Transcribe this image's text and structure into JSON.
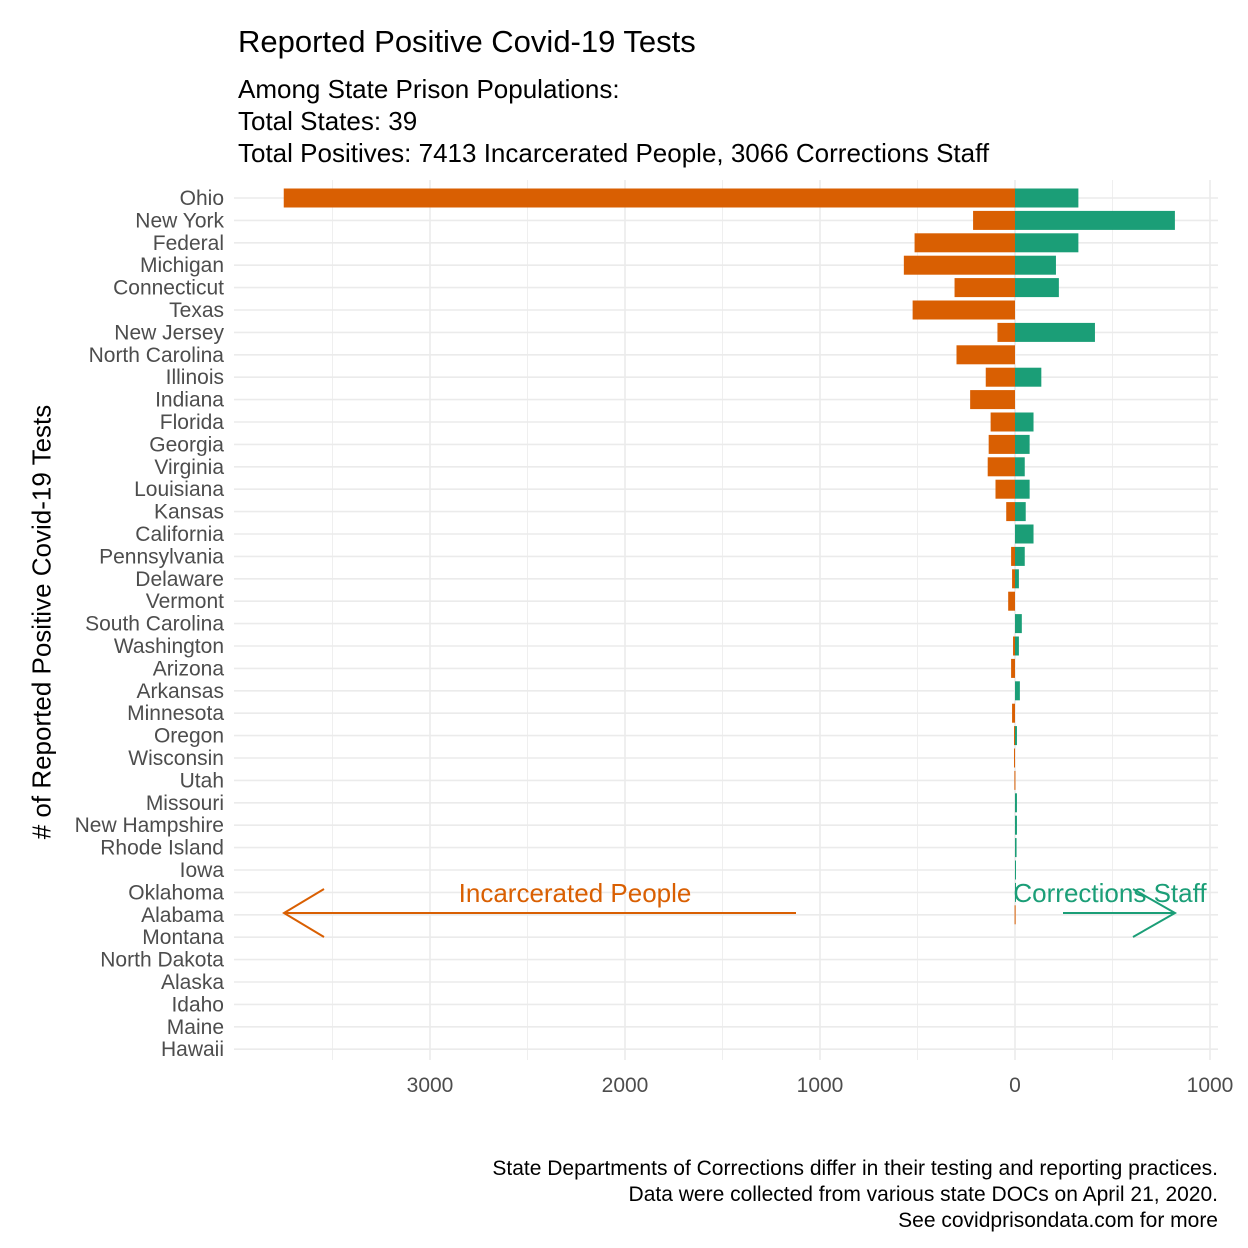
{
  "chart_data": {
    "type": "bar",
    "orientation": "horizontal-diverging",
    "title": "Reported Positive Covid-19 Tests",
    "subtitle": [
      "Among State Prison Populations:",
      "Total States: 39",
      "Total Positives: 7413 Incarcerated People, 3066 Corrections Staff"
    ],
    "ylabel": "# of Reported Positive Covid-19 Tests",
    "xlim": [
      -3900,
      1050
    ],
    "x_ticks": [
      -3000,
      -2000,
      -1000,
      0,
      1000
    ],
    "x_tick_labels": [
      "3000",
      "2000",
      "1000",
      "0",
      "1000"
    ],
    "categories": [
      "Ohio",
      "New York",
      "Federal",
      "Michigan",
      "Connecticut",
      "Texas",
      "New Jersey",
      "North Carolina",
      "Illinois",
      "Indiana",
      "Florida",
      "Georgia",
      "Virginia",
      "Louisiana",
      "Kansas",
      "California",
      "Pennsylvania",
      "Delaware",
      "Vermont",
      "South Carolina",
      "Washington",
      "Arizona",
      "Arkansas",
      "Minnesota",
      "Oregon",
      "Wisconsin",
      "Utah",
      "Missouri",
      "New Hampshire",
      "Rhode Island",
      "Iowa",
      "Oklahoma",
      "Alabama",
      "Montana",
      "North Dakota",
      "Alaska",
      "Idaho",
      "Maine",
      "Hawaii"
    ],
    "series": [
      {
        "name": "Incarcerated People",
        "color": "#d95f02",
        "values": [
          3750,
          215,
          515,
          570,
          310,
          525,
          90,
          300,
          150,
          230,
          125,
          135,
          140,
          100,
          45,
          0,
          20,
          15,
          35,
          0,
          10,
          20,
          0,
          15,
          5,
          5,
          3,
          0,
          0,
          0,
          0,
          0,
          2,
          0,
          0,
          0,
          0,
          0,
          0
        ]
      },
      {
        "name": "Corrections Staff",
        "color": "#1b9e77",
        "values": [
          325,
          820,
          325,
          210,
          225,
          0,
          410,
          0,
          135,
          0,
          95,
          75,
          50,
          75,
          55,
          95,
          50,
          20,
          0,
          35,
          20,
          0,
          25,
          0,
          10,
          0,
          0,
          10,
          10,
          8,
          5,
          3,
          0,
          0,
          0,
          0,
          0,
          0,
          0
        ]
      }
    ],
    "annotations": [
      {
        "text": "Incarcerated People",
        "color": "#d95f02"
      },
      {
        "text": "Corrections Staff",
        "color": "#1b9e77"
      }
    ],
    "grid": true,
    "legend": "none",
    "caption": [
      "State Departments of Corrections differ in their testing and reporting practices.",
      "Data were collected from various state DOCs on April 21, 2020.",
      "See covidprisondata.com for more"
    ]
  }
}
